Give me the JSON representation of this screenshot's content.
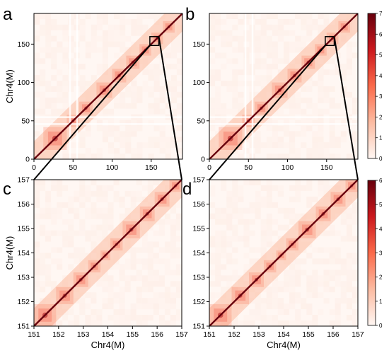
{
  "colors": {
    "heat_low": "#fff7f3",
    "heat_mid": "#ef3b2c",
    "heat_high": "#67000d",
    "axis": "#000000"
  },
  "chart_data": [
    {
      "type": "heatmap",
      "panel_label": "a",
      "xlabel": "",
      "ylabel": "Chr4(M)",
      "xlim": [
        0,
        190
      ],
      "ylim": [
        0,
        190
      ],
      "x_ticks": [
        0,
        50,
        100,
        150
      ],
      "y_ticks": [
        0,
        50,
        100,
        150
      ],
      "zoom_box": [
        151,
        157
      ],
      "colorbar_range": [
        0,
        7
      ],
      "domains": [
        [
          12,
          42
        ],
        [
          42,
          58
        ],
        [
          58,
          75
        ],
        [
          80,
          100
        ],
        [
          100,
          118
        ],
        [
          118,
          135
        ],
        [
          135,
          150
        ],
        [
          150,
          165
        ],
        [
          165,
          180
        ]
      ],
      "gaps": [
        46,
        55
      ]
    },
    {
      "type": "heatmap",
      "panel_label": "b",
      "xlabel": "",
      "ylabel": "",
      "xlim": [
        0,
        190
      ],
      "ylim": [
        0,
        190
      ],
      "x_ticks": [
        0,
        50,
        100,
        150
      ],
      "y_ticks": [
        0,
        50,
        100,
        150
      ],
      "zoom_box": [
        151,
        157
      ],
      "colorbar_range": [
        0,
        7
      ],
      "domains": [
        [
          12,
          42
        ],
        [
          42,
          58
        ],
        [
          58,
          75
        ],
        [
          80,
          100
        ],
        [
          100,
          118
        ],
        [
          118,
          135
        ],
        [
          135,
          150
        ],
        [
          150,
          165
        ],
        [
          165,
          180
        ]
      ],
      "gaps": [
        46,
        55
      ]
    },
    {
      "type": "heatmap",
      "panel_label": "c",
      "xlabel": "Chr4(M)",
      "ylabel": "Chr4(M)",
      "xlim": [
        151,
        157
      ],
      "ylim": [
        151,
        157
      ],
      "x_ticks": [
        151,
        152,
        153,
        154,
        155,
        156,
        157
      ],
      "y_ticks": [
        151,
        152,
        153,
        154,
        155,
        156,
        157
      ],
      "colorbar_range": [
        0,
        6
      ],
      "domains": [
        [
          151.0,
          151.9
        ],
        [
          151.9,
          152.6
        ],
        [
          152.6,
          153.2
        ],
        [
          153.2,
          153.7
        ],
        [
          153.7,
          154.1
        ],
        [
          154.1,
          154.6
        ],
        [
          154.6,
          155.3
        ],
        [
          155.3,
          155.9
        ],
        [
          155.9,
          156.5
        ],
        [
          156.5,
          157.0
        ]
      ],
      "gaps": []
    },
    {
      "type": "heatmap",
      "panel_label": "d",
      "xlabel": "Chr4(M)",
      "ylabel": "",
      "xlim": [
        151,
        157
      ],
      "ylim": [
        151,
        157
      ],
      "x_ticks": [
        151,
        152,
        153,
        154,
        155,
        156,
        157
      ],
      "y_ticks": [
        151,
        152,
        153,
        154,
        155,
        156,
        157
      ],
      "colorbar_range": [
        0,
        6
      ],
      "domains": [
        [
          151.0,
          151.9
        ],
        [
          151.9,
          152.6
        ],
        [
          152.6,
          153.2
        ],
        [
          153.2,
          153.7
        ],
        [
          153.7,
          154.1
        ],
        [
          154.1,
          154.6
        ],
        [
          154.6,
          155.3
        ],
        [
          155.3,
          155.9
        ],
        [
          155.9,
          156.5
        ],
        [
          156.5,
          157.0
        ]
      ],
      "gaps": []
    }
  ],
  "colorbars": [
    {
      "ticks": [
        0,
        1,
        2,
        3,
        4,
        5,
        6,
        7
      ]
    },
    {
      "ticks": [
        0,
        1,
        2,
        3,
        4,
        5,
        6
      ]
    }
  ]
}
